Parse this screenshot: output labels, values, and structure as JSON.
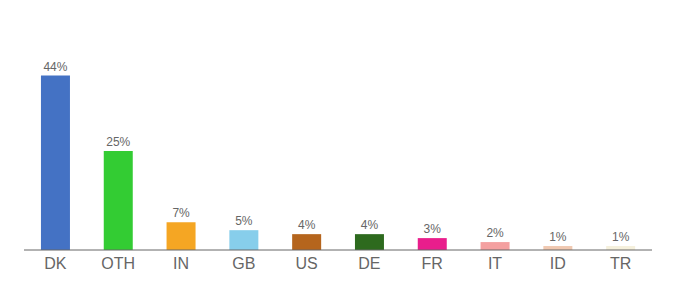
{
  "chart_data": {
    "type": "bar",
    "categories": [
      "DK",
      "OTH",
      "IN",
      "GB",
      "US",
      "DE",
      "FR",
      "IT",
      "ID",
      "TR"
    ],
    "values": [
      44,
      25,
      7,
      5,
      4,
      4,
      3,
      2,
      1,
      1
    ],
    "value_labels": [
      "44%",
      "25%",
      "7%",
      "5%",
      "4%",
      "4%",
      "3%",
      "2%",
      "1%",
      "1%"
    ],
    "colors": [
      "#4472c4",
      "#33cc33",
      "#f5a623",
      "#87ceeb",
      "#b5651d",
      "#2d6a1e",
      "#e91e8c",
      "#f4a0a0",
      "#f0c8b0",
      "#f5f0dc"
    ],
    "ylim": [
      0,
      55
    ],
    "data_labels": true,
    "grid": false,
    "tick_labels": "x"
  }
}
